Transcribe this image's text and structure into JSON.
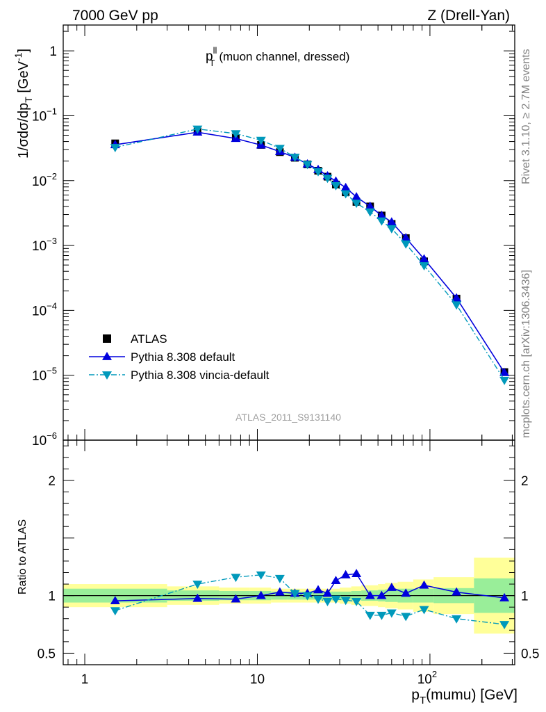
{
  "header": {
    "left": "7000 GeV pp",
    "right": "Z (Drell-Yan)"
  },
  "side_labels": {
    "top": "Rivet 3.1.10, ≥ 2.7M events",
    "bottom": "mcplots.cern.ch [arXiv:1306.3436]"
  },
  "watermark": "ATLAS_2011_S9131140",
  "colors": {
    "data": "#000000",
    "pythia_default": "#0000dd",
    "vincia": "#0099bb",
    "band_inner": "#99ee99",
    "band_outer": "#ffff99"
  },
  "chart_data": [
    {
      "type": "scatter",
      "panel": "main",
      "title_main": "p",
      "title_sup": "ll",
      "title_sub": "T",
      "title_rest": "(muon channel, dressed)",
      "ylabel": "1/σdσ/dp_T [GeV^-1]",
      "xscale": "log",
      "yscale": "log",
      "xlim": [
        0.75,
        310
      ],
      "ylim": [
        1e-06,
        2.5
      ],
      "legend_position": "bottom-left",
      "x": [
        1.5,
        4.5,
        7.5,
        10.5,
        13.5,
        16.5,
        19.5,
        22.5,
        25.5,
        28.5,
        32.5,
        37.5,
        45,
        52.5,
        60,
        72.5,
        92.5,
        142.5,
        270
      ],
      "series": [
        {
          "name": "ATLAS",
          "marker": "square",
          "values": [
            0.0375,
            0.057,
            0.0455,
            0.0355,
            0.0275,
            0.0225,
            0.0178,
            0.0142,
            0.0115,
            0.0087,
            0.0066,
            0.0047,
            0.004,
            0.0029,
            0.00215,
            0.0013,
            0.00057,
            0.000152,
            1.12e-05
          ]
        },
        {
          "name": "Pythia 8.308 default",
          "marker": "triangle-up",
          "values": [
            0.0357,
            0.0557,
            0.0445,
            0.0353,
            0.028,
            0.0228,
            0.018,
            0.0148,
            0.0118,
            0.0098,
            0.0078,
            0.0056,
            0.004,
            0.0029,
            0.0023,
            0.00131,
            0.00062,
            0.000155,
            1.1e-05
          ]
        },
        {
          "name": "Pythia 8.308 vincia-default",
          "marker": "triangle-down",
          "values": [
            0.0325,
            0.0625,
            0.053,
            0.042,
            0.0315,
            0.023,
            0.0178,
            0.0138,
            0.0109,
            0.0084,
            0.0063,
            0.0045,
            0.0033,
            0.0024,
            0.00182,
            0.00106,
            0.00049,
            0.000122,
            8.4e-06
          ]
        }
      ]
    },
    {
      "type": "scatter",
      "panel": "ratio",
      "ylabel": "Ratio to ATLAS",
      "xlabel": "p_T(mumu) [GeV]",
      "xscale": "log",
      "ylim": [
        0.4,
        2.35
      ],
      "x": [
        1.5,
        4.5,
        7.5,
        10.5,
        13.5,
        16.5,
        19.5,
        22.5,
        25.5,
        28.5,
        32.5,
        37.5,
        45,
        52.5,
        60,
        72.5,
        92.5,
        142.5,
        270
      ],
      "bins": [
        [
          0.75,
          3
        ],
        [
          3,
          6
        ],
        [
          6,
          9
        ],
        [
          9,
          12
        ],
        [
          12,
          15
        ],
        [
          15,
          18
        ],
        [
          18,
          21
        ],
        [
          21,
          24
        ],
        [
          24,
          27
        ],
        [
          27,
          30
        ],
        [
          30,
          35
        ],
        [
          35,
          40
        ],
        [
          40,
          50
        ],
        [
          50,
          55
        ],
        [
          55,
          65
        ],
        [
          65,
          80
        ],
        [
          80,
          105
        ],
        [
          105,
          180
        ],
        [
          180,
          310
        ]
      ],
      "band_inner": [
        0.06,
        0.045,
        0.04,
        0.04,
        0.035,
        0.035,
        0.035,
        0.035,
        0.035,
        0.035,
        0.035,
        0.04,
        0.045,
        0.05,
        0.055,
        0.06,
        0.06,
        0.065,
        0.15
      ],
      "band_outer": [
        0.1,
        0.08,
        0.07,
        0.07,
        0.06,
        0.06,
        0.06,
        0.06,
        0.06,
        0.06,
        0.07,
        0.08,
        0.09,
        0.1,
        0.11,
        0.12,
        0.14,
        0.16,
        0.33
      ],
      "series": [
        {
          "name": "Pythia 8.308 default",
          "marker": "triangle-up",
          "values": [
            0.955,
            0.975,
            0.97,
            1.0,
            1.03,
            1.02,
            1.02,
            1.05,
            1.02,
            1.13,
            1.18,
            1.19,
            1.0,
            1.0,
            1.07,
            1.02,
            1.09,
            1.03,
            0.98
          ]
        },
        {
          "name": "Pythia 8.308 vincia-default",
          "marker": "triangle-down",
          "values": [
            0.87,
            1.1,
            1.16,
            1.18,
            1.15,
            1.02,
            1.0,
            0.97,
            0.95,
            0.97,
            0.96,
            0.95,
            0.83,
            0.83,
            0.85,
            0.82,
            0.88,
            0.8,
            0.75
          ]
        }
      ]
    }
  ],
  "axes": {
    "main_y_ticks": [
      {
        "base": "1",
        "exp": "",
        "value": 1
      },
      {
        "base": "10",
        "exp": "−1",
        "value": 0.1
      },
      {
        "base": "10",
        "exp": "−2",
        "value": 0.01
      },
      {
        "base": "10",
        "exp": "−3",
        "value": 0.001
      },
      {
        "base": "10",
        "exp": "−4",
        "value": 0.0001
      },
      {
        "base": "10",
        "exp": "−5",
        "value": 1e-05
      },
      {
        "base": "10",
        "exp": "−6",
        "value": 1e-06
      }
    ],
    "ratio_y_ticks": [
      {
        "label": "2",
        "value": 2
      },
      {
        "label": "1",
        "value": 1
      },
      {
        "label": "0.5",
        "value": 0.5
      }
    ],
    "x_ticks": [
      {
        "base": "1",
        "exp": "",
        "value": 1
      },
      {
        "base": "10",
        "exp": "",
        "value": 10
      },
      {
        "base": "10",
        "exp": "2",
        "value": 100
      }
    ]
  }
}
